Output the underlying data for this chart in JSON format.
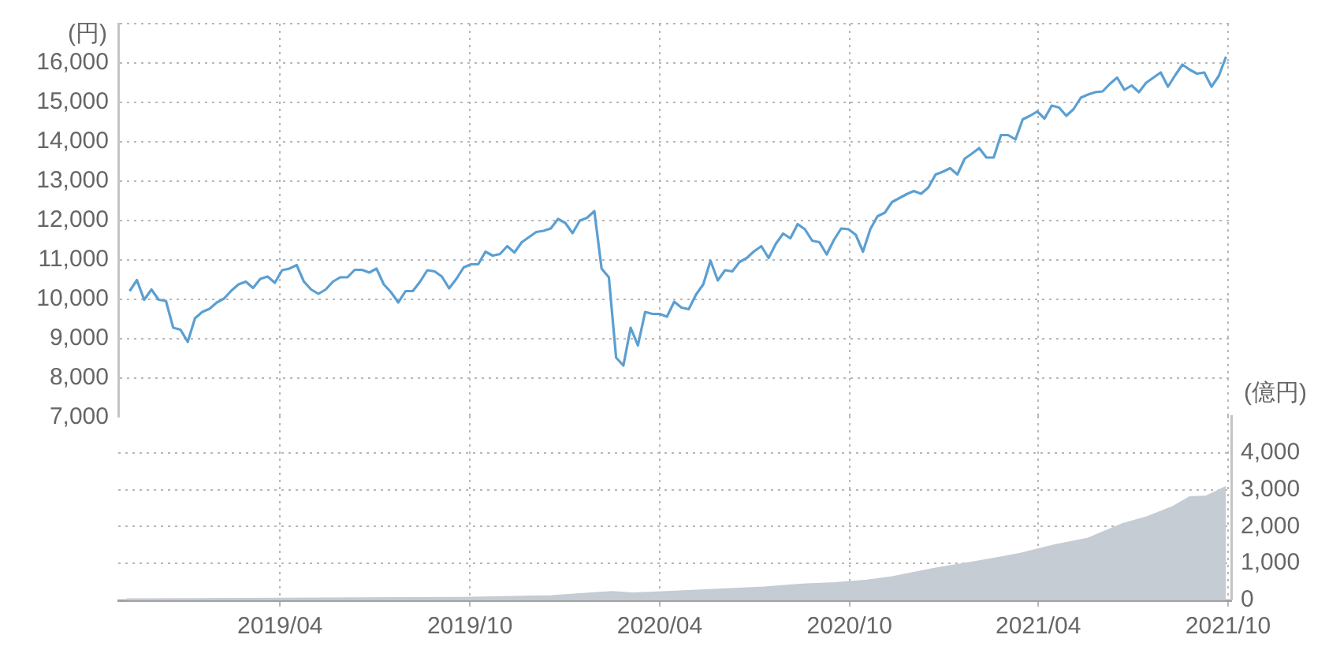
{
  "chart_data": [
    {
      "type": "line",
      "ylabel": "(円)",
      "grid": true,
      "marker": "none",
      "line_style": "solid",
      "tick_labels": "y",
      "xlim": [
        "2018-10-27",
        "2021-10-04"
      ],
      "xticks": [
        {
          "value": "2019-04-01",
          "label": null
        },
        {
          "value": "2019-10-01",
          "label": null
        },
        {
          "value": "2020-04-01",
          "label": null
        },
        {
          "value": "2020-10-01",
          "label": null
        },
        {
          "value": "2021-04-01",
          "label": null
        },
        {
          "value": "2021-10-01",
          "label": null
        }
      ],
      "ylim": [
        7000,
        17000
      ],
      "yticks": [
        {
          "value": 7000,
          "label": "7,000"
        },
        {
          "value": 8000,
          "label": "8,000"
        },
        {
          "value": 9000,
          "label": "9,000"
        },
        {
          "value": 10000,
          "label": "10,000"
        },
        {
          "value": 11000,
          "label": "11,000"
        },
        {
          "value": 12000,
          "label": "12,000"
        },
        {
          "value": 13000,
          "label": "13,000"
        },
        {
          "value": 14000,
          "label": "14,000"
        },
        {
          "value": 15000,
          "label": "15,000"
        },
        {
          "value": 16000,
          "label": "16,000"
        },
        {
          "value": 17000,
          "label": null
        }
      ],
      "x": [
        "2018-11-07",
        "2018-11-14",
        "2018-11-21",
        "2018-11-28",
        "2018-12-05",
        "2018-12-12",
        "2018-12-19",
        "2018-12-26",
        "2019-01-02",
        "2019-01-09",
        "2019-01-16",
        "2019-01-23",
        "2019-01-30",
        "2019-02-06",
        "2019-02-13",
        "2019-02-20",
        "2019-02-27",
        "2019-03-06",
        "2019-03-13",
        "2019-03-20",
        "2019-03-27",
        "2019-04-03",
        "2019-04-10",
        "2019-04-17",
        "2019-04-24",
        "2019-05-01",
        "2019-05-08",
        "2019-05-15",
        "2019-05-22",
        "2019-05-29",
        "2019-06-05",
        "2019-06-12",
        "2019-06-19",
        "2019-06-26",
        "2019-07-03",
        "2019-07-10",
        "2019-07-17",
        "2019-07-24",
        "2019-07-31",
        "2019-08-07",
        "2019-08-14",
        "2019-08-21",
        "2019-08-28",
        "2019-09-04",
        "2019-09-11",
        "2019-09-18",
        "2019-09-25",
        "2019-10-02",
        "2019-10-09",
        "2019-10-16",
        "2019-10-23",
        "2019-10-30",
        "2019-11-06",
        "2019-11-13",
        "2019-11-20",
        "2019-11-27",
        "2019-12-04",
        "2019-12-11",
        "2019-12-18",
        "2019-12-25",
        "2020-01-01",
        "2020-01-08",
        "2020-01-15",
        "2020-01-22",
        "2020-01-29",
        "2020-02-05",
        "2020-02-12",
        "2020-02-19",
        "2020-02-26",
        "2020-03-04",
        "2020-03-11",
        "2020-03-18",
        "2020-03-25",
        "2020-04-01",
        "2020-04-08",
        "2020-04-15",
        "2020-04-22",
        "2020-04-29",
        "2020-05-06",
        "2020-05-13",
        "2020-05-20",
        "2020-05-27",
        "2020-06-03",
        "2020-06-10",
        "2020-06-17",
        "2020-06-24",
        "2020-07-01",
        "2020-07-08",
        "2020-07-15",
        "2020-07-22",
        "2020-07-29",
        "2020-08-05",
        "2020-08-12",
        "2020-08-19",
        "2020-08-26",
        "2020-09-02",
        "2020-09-09",
        "2020-09-16",
        "2020-09-23",
        "2020-09-30",
        "2020-10-07",
        "2020-10-14",
        "2020-10-21",
        "2020-10-28",
        "2020-11-04",
        "2020-11-11",
        "2020-11-18",
        "2020-11-25",
        "2020-12-02",
        "2020-12-09",
        "2020-12-16",
        "2020-12-23",
        "2020-12-30",
        "2021-01-06",
        "2021-01-13",
        "2021-01-20",
        "2021-01-27",
        "2021-02-03",
        "2021-02-10",
        "2021-02-17",
        "2021-02-24",
        "2021-03-03",
        "2021-03-10",
        "2021-03-17",
        "2021-03-24",
        "2021-03-31",
        "2021-04-07",
        "2021-04-14",
        "2021-04-21",
        "2021-04-28",
        "2021-05-05",
        "2021-05-12",
        "2021-05-19",
        "2021-05-26",
        "2021-06-02",
        "2021-06-09",
        "2021-06-16",
        "2021-06-23",
        "2021-06-30",
        "2021-07-07",
        "2021-07-14",
        "2021-07-21",
        "2021-07-28",
        "2021-08-04",
        "2021-08-11",
        "2021-08-18",
        "2021-08-25",
        "2021-09-01",
        "2021-09-08",
        "2021-09-15",
        "2021-09-22",
        "2021-09-29"
      ],
      "series": [
        {
          "color": "#5b9fd2",
          "values": [
            10210,
            10490,
            9990,
            10250,
            9990,
            9960,
            9280,
            9230,
            8920,
            9520,
            9680,
            9760,
            9920,
            10020,
            10220,
            10380,
            10450,
            10290,
            10520,
            10580,
            10420,
            10740,
            10780,
            10870,
            10450,
            10250,
            10140,
            10250,
            10450,
            10560,
            10560,
            10750,
            10750,
            10680,
            10780,
            10380,
            10180,
            9920,
            10210,
            10210,
            10450,
            10740,
            10710,
            10580,
            10280,
            10520,
            10810,
            10890,
            10890,
            11210,
            11110,
            11150,
            11350,
            11190,
            11450,
            11580,
            11710,
            11740,
            11800,
            12040,
            11940,
            11680,
            12000,
            12070,
            12240,
            10780,
            10560,
            8520,
            8320,
            9280,
            8830,
            9680,
            9630,
            9630,
            9560,
            9940,
            9790,
            9750,
            10120,
            10380,
            10980,
            10480,
            10740,
            10710,
            10950,
            11050,
            11220,
            11350,
            11050,
            11410,
            11670,
            11550,
            11910,
            11780,
            11490,
            11450,
            11140,
            11510,
            11800,
            11780,
            11640,
            11210,
            11780,
            12110,
            12200,
            12470,
            12570,
            12670,
            12750,
            12680,
            12840,
            13170,
            13240,
            13330,
            13170,
            13570,
            13700,
            13840,
            13600,
            13600,
            14170,
            14170,
            14060,
            14570,
            14660,
            14770,
            14590,
            14920,
            14870,
            14660,
            14830,
            15120,
            15200,
            15260,
            15280,
            15470,
            15630,
            15320,
            15430,
            15260,
            15500,
            15630,
            15760,
            15400,
            15690,
            15960,
            15830,
            15730,
            15760,
            15400,
            15670,
            16160
          ]
        }
      ]
    },
    {
      "type": "area",
      "y2label": "(億円)",
      "grid": true,
      "marker": "none",
      "line_style": "solid",
      "xlim": [
        "2018-10-27",
        "2021-10-04"
      ],
      "xticks": [
        {
          "value": "2019-04-01",
          "label": "2019/04"
        },
        {
          "value": "2019-10-01",
          "label": "2019/10"
        },
        {
          "value": "2020-04-01",
          "label": "2020/04"
        },
        {
          "value": "2020-10-01",
          "label": "2020/10"
        },
        {
          "value": "2021-04-01",
          "label": "2021/04"
        },
        {
          "value": "2021-10-01",
          "label": "2021/10"
        }
      ],
      "y2lim": [
        0,
        5000
      ],
      "y2ticks": [
        {
          "value": 0,
          "label": "0"
        },
        {
          "value": 1000,
          "label": "1,000"
        },
        {
          "value": 2000,
          "label": "2,000"
        },
        {
          "value": 3000,
          "label": "3,000"
        },
        {
          "value": 4000,
          "label": "4,000"
        }
      ],
      "x": [
        "2018-11-04",
        "2019-04-01",
        "2019-09-22",
        "2019-12-19",
        "2020-02-15",
        "2020-03-06",
        "2020-03-22",
        "2020-05-15",
        "2020-07-11",
        "2020-08-21",
        "2020-09-17",
        "2020-10-18",
        "2020-11-11",
        "2020-12-22",
        "2021-02-01",
        "2021-03-14",
        "2021-04-16",
        "2021-05-19",
        "2021-06-21",
        "2021-07-15",
        "2021-08-09",
        "2021-08-25",
        "2021-09-10",
        "2021-09-29"
      ],
      "series": [
        {
          "axis": "y2",
          "color": "#c5ccd3",
          "values": [
            30,
            50,
            70,
            120,
            230,
            190,
            210,
            280,
            350,
            440,
            470,
            540,
            630,
            860,
            1050,
            1260,
            1490,
            1680,
            2070,
            2260,
            2540,
            2800,
            2820,
            3080
          ]
        }
      ]
    }
  ]
}
